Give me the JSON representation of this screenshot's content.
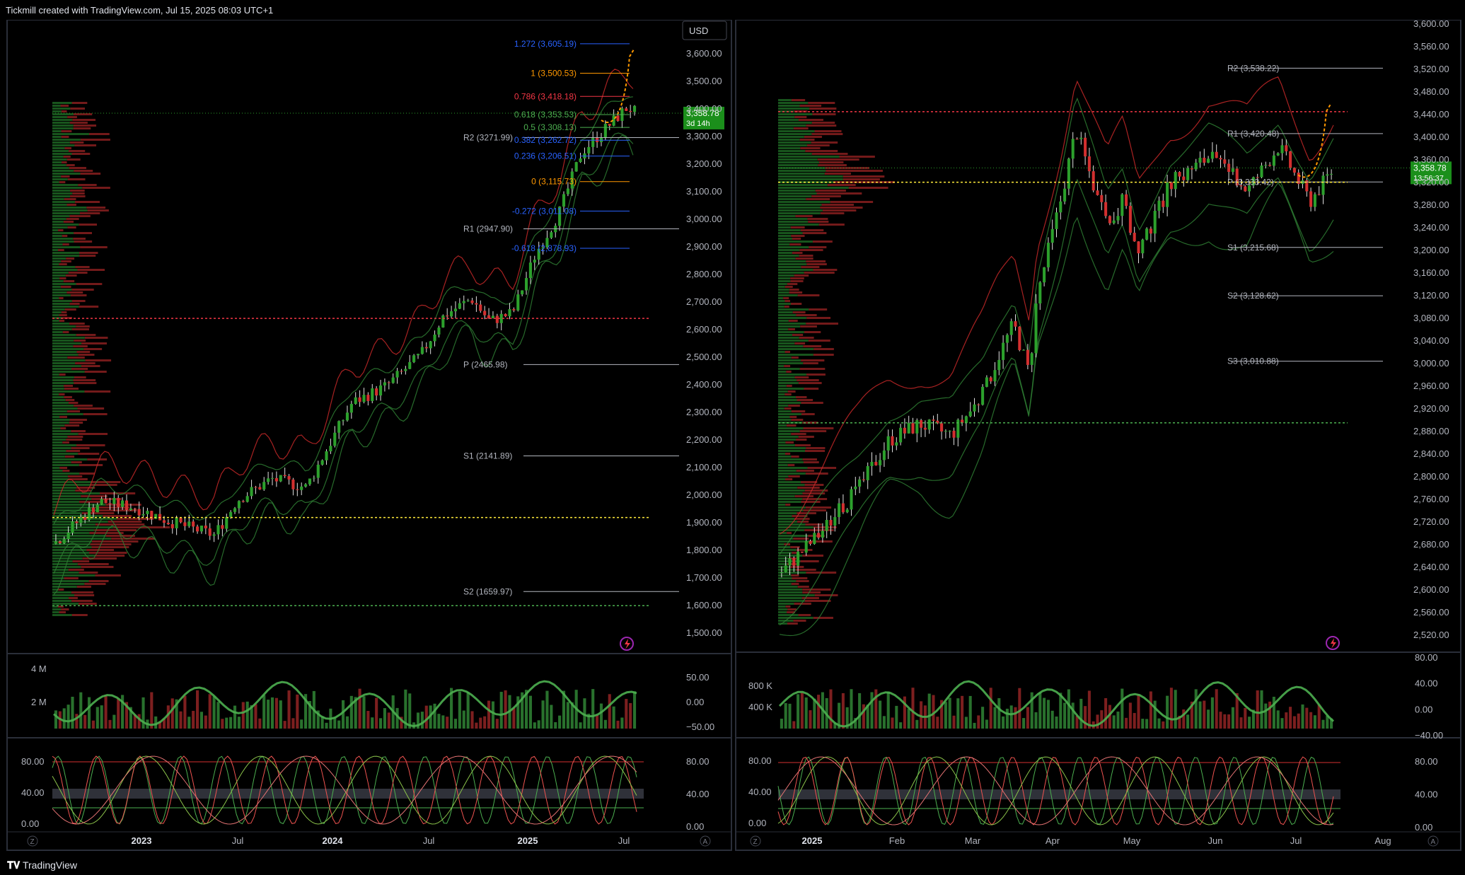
{
  "header": {
    "caption": "Tickmill created with TradingView.com, Jul 15, 2025 08:03 UTC+1"
  },
  "footer": {
    "brand": "TradingView",
    "brand_icon": "tradingview-logo-icon"
  },
  "colors": {
    "up": "#26a69a",
    "up_bar": "#3e8e3e",
    "down": "#c62828",
    "band": "#c62828",
    "band_green": "#2e7d32",
    "fib_blue": "#2962ff",
    "fib_orange": "#ff9800",
    "price_label": "#1b8f1b",
    "pivot_line": "#b2b5be",
    "dotted_red": "#f23645",
    "dotted_yellow": "#ffeb3b",
    "dotted_green": "#4caf50"
  },
  "left_panel": {
    "currency": "USD",
    "price_axis": [
      "3,600.00",
      "3,500.00",
      "3,400.00",
      "3,300.00",
      "3,200.00",
      "3,100.00",
      "3,000.00",
      "2,900.00",
      "2,800.00",
      "2,700.00",
      "2,600.00",
      "2,500.00",
      "2,400.00",
      "2,300.00",
      "2,200.00",
      "2,100.00",
      "2,000.00",
      "1,900.00",
      "1,800.00",
      "1,700.00",
      "1,600.00",
      "1,500.00"
    ],
    "time_axis": [
      "2023",
      "Jul",
      "2024",
      "Jul",
      "2025",
      "Jul"
    ],
    "last_price": "3,358.78",
    "countdown": "3d 14h",
    "fib_levels": [
      {
        "label": "1.272 (3,605.19)",
        "color": "#2962ff"
      },
      {
        "label": "1 (3,500.53)",
        "color": "#ff9800"
      },
      {
        "label": "0.786 (3,418.18)",
        "color": "#f23645"
      },
      {
        "label": "0.618 (3,353.53)",
        "color": "#4caf50"
      },
      {
        "label": "0.5 (3,308.13)",
        "color": "#4caf50"
      },
      {
        "label": "0.382 (3,262.72)",
        "color": "#2962ff"
      },
      {
        "label": "0.236 (3,206.51)",
        "color": "#2962ff"
      },
      {
        "label": "0 (3,115.73)",
        "color": "#ff9800"
      },
      {
        "label": "-0.272 (3,011.08)",
        "color": "#2962ff"
      },
      {
        "label": "-0.618 (2,878.93)",
        "color": "#2962ff"
      }
    ],
    "pivots": [
      {
        "label": "R2 (3271.99)"
      },
      {
        "label": "R1 (2947.90)"
      },
      {
        "label": "P (2465.98)"
      },
      {
        "label": "S1 (2141.89)"
      },
      {
        "label": "S2 (1659.97)"
      }
    ],
    "volume_axis": [
      "4 M",
      "2 M"
    ],
    "momentum_axis": [
      "50.00",
      "0.00",
      "−50.00"
    ],
    "stoch_axis_left": [
      "80.00",
      "40.00",
      "0.00"
    ],
    "stoch_axis_right": [
      "80.00",
      "40.00",
      "0.00"
    ]
  },
  "right_panel": {
    "price_axis": [
      "3,600.00",
      "3,560.00",
      "3,520.00",
      "3,480.00",
      "3,440.00",
      "3,400.00",
      "3,360.00",
      "3,320.00",
      "3,280.00",
      "3,240.00",
      "3,200.00",
      "3,160.00",
      "3,120.00",
      "3,080.00",
      "3,040.00",
      "3,000.00",
      "2,960.00",
      "2,920.00",
      "2,880.00",
      "2,840.00",
      "2,800.00",
      "2,760.00",
      "2,720.00",
      "2,680.00",
      "2,640.00",
      "2,600.00",
      "2,560.00",
      "2,520.00"
    ],
    "time_axis": [
      "2025",
      "Feb",
      "Mar",
      "Apr",
      "May",
      "Jun",
      "Jul",
      "Aug"
    ],
    "last_price": "3,358.78",
    "countdown": "13:56:37",
    "pivots": [
      {
        "label": "R2 (3,538.22)"
      },
      {
        "label": "R1 (3,420.48)"
      },
      {
        "label": "P (3,333.42)"
      },
      {
        "label": "S1 (3,215.68)"
      },
      {
        "label": "S2 (3,128.62)"
      },
      {
        "label": "S3 (3,010.88)"
      }
    ],
    "volume_axis": [
      "800 K",
      "400 K"
    ],
    "momentum_axis": [
      "80.00",
      "40.00",
      "0.00",
      "−40.00"
    ],
    "stoch_axis_left": [
      "80.00",
      "40.00",
      "0.00"
    ],
    "stoch_axis_right": [
      "80.00",
      "40.00",
      "0.00"
    ]
  },
  "chart_data": [
    {
      "type": "candlestick",
      "panel": "left",
      "timeframe": "weekly",
      "ylim": [
        1500,
        3650
      ],
      "x": [
        "2023",
        "Jul",
        "2024",
        "Jul",
        "2025",
        "Jul"
      ],
      "close_path": [
        [
          2023.0,
          1830
        ],
        [
          2023.2,
          1980
        ],
        [
          2023.35,
          1960
        ],
        [
          2023.5,
          1910
        ],
        [
          2023.7,
          1860
        ],
        [
          2023.8,
          1985
        ],
        [
          2023.95,
          2060
        ],
        [
          2024.1,
          2030
        ],
        [
          2024.2,
          2180
        ],
        [
          2024.3,
          2330
        ],
        [
          2024.45,
          2390
        ],
        [
          2024.6,
          2500
        ],
        [
          2024.7,
          2640
        ],
        [
          2024.82,
          2700
        ],
        [
          2024.9,
          2620
        ],
        [
          2025.0,
          2650
        ],
        [
          2025.1,
          2860
        ],
        [
          2025.2,
          3000
        ],
        [
          2025.3,
          3220
        ],
        [
          2025.4,
          3300
        ],
        [
          2025.45,
          3340
        ],
        [
          2025.5,
          3380
        ],
        [
          2025.54,
          3358.78
        ]
      ],
      "last": 3358.78,
      "fib_levels": [
        3605.19,
        3500.53,
        3418.18,
        3353.53,
        3308.13,
        3262.72,
        3206.51,
        3115.73,
        3011.08,
        2878.93
      ],
      "pivots": {
        "R2": 3271.99,
        "R1": 2947.9,
        "P": 2465.98,
        "S1": 2141.89,
        "S2": 1659.97
      }
    },
    {
      "type": "candlestick",
      "panel": "right",
      "timeframe": "daily",
      "ylim": [
        2500,
        3610
      ],
      "x": [
        "2025",
        "Feb",
        "Mar",
        "Apr",
        "May",
        "Jun",
        "Jul",
        "Aug"
      ],
      "close_path": [
        [
          2025.0,
          2630
        ],
        [
          2025.05,
          2700
        ],
        [
          2025.1,
          2780
        ],
        [
          2025.14,
          2870
        ],
        [
          2025.18,
          2900
        ],
        [
          2025.22,
          2880
        ],
        [
          2025.26,
          2950
        ],
        [
          2025.28,
          3020
        ],
        [
          2025.3,
          3080
        ],
        [
          2025.32,
          2990
        ],
        [
          2025.33,
          3130
        ],
        [
          2025.36,
          3300
        ],
        [
          2025.38,
          3430
        ],
        [
          2025.42,
          3250
        ],
        [
          2025.44,
          3300
        ],
        [
          2025.46,
          3200
        ],
        [
          2025.5,
          3330
        ],
        [
          2025.55,
          3380
        ],
        [
          2025.6,
          3320
        ],
        [
          2025.64,
          3400
        ],
        [
          2025.68,
          3300
        ],
        [
          2025.71,
          3358.78
        ]
      ],
      "last": 3358.78,
      "pivots": {
        "R2": 3538.22,
        "R1": 3420.48,
        "P": 3333.42,
        "S1": 3215.68,
        "S2": 3128.62,
        "S3": 3010.88
      }
    }
  ]
}
